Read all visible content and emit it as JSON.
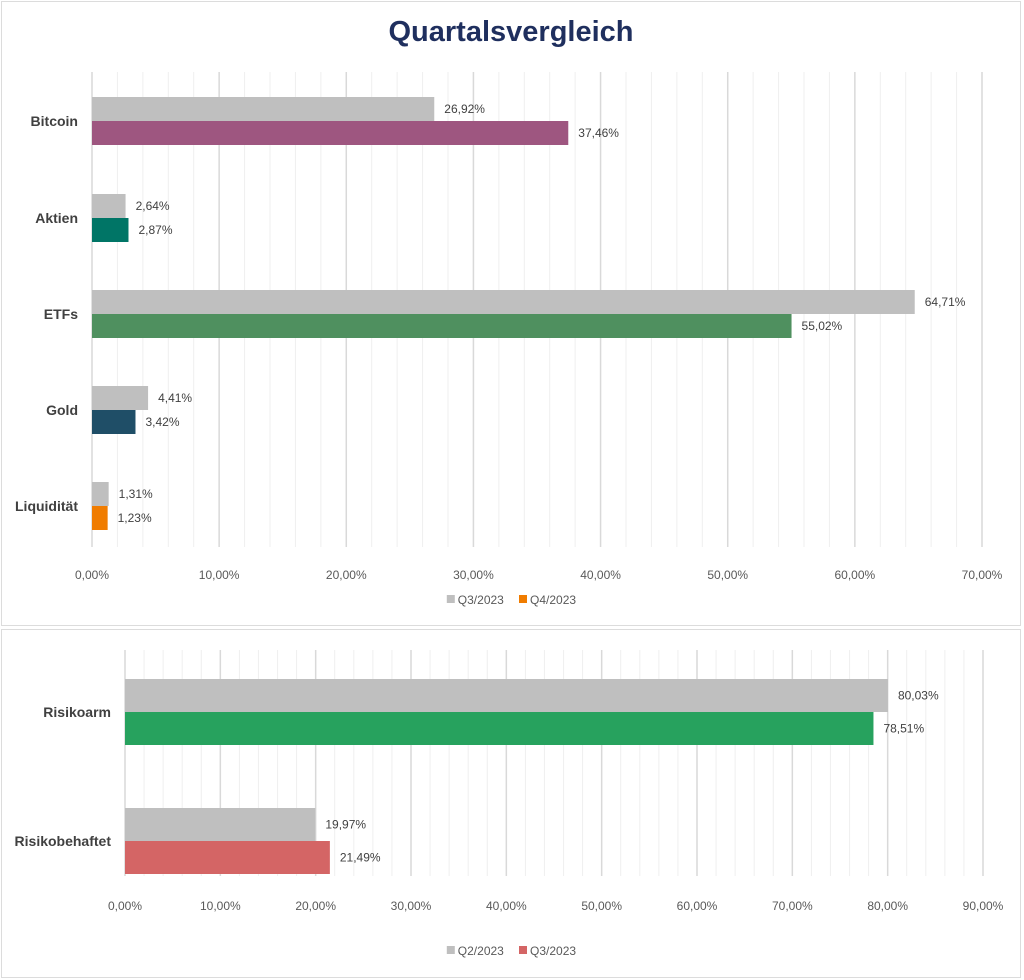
{
  "page_title": "Quartalsvergleich",
  "chart_data": [
    {
      "type": "bar",
      "orientation": "horizontal",
      "title": "Quartalsvergleich",
      "categories": [
        "Bitcoin",
        "Aktien",
        "ETFs",
        "Gold",
        "Liquidität"
      ],
      "series": [
        {
          "name": "Q3/2023",
          "values": [
            26.92,
            2.64,
            64.71,
            4.41,
            1.31
          ],
          "labels": [
            "26,92%",
            "2,64%",
            "64,71%",
            "4,41%",
            "1,31%"
          ],
          "color": "#bfbfbf"
        },
        {
          "name": "Q4/2023",
          "values": [
            37.46,
            2.87,
            55.02,
            3.42,
            1.23
          ],
          "labels": [
            "37,46%",
            "2,87%",
            "55,02%",
            "3,42%",
            "1,23%"
          ],
          "colors": [
            "#9e5680",
            "#007566",
            "#4f905f",
            "#1f4e67",
            "#f07c00"
          ],
          "legend_color": "#f07c00"
        }
      ],
      "xlim": [
        0,
        70
      ],
      "x_ticks": [
        0,
        10,
        20,
        30,
        40,
        50,
        60,
        70
      ],
      "x_tick_labels": [
        "0,00%",
        "10,00%",
        "20,00%",
        "30,00%",
        "40,00%",
        "50,00%",
        "60,00%",
        "70,00%"
      ],
      "xlabel": "",
      "ylabel": "",
      "grid": true,
      "legend": "bottom-center"
    },
    {
      "type": "bar",
      "orientation": "horizontal",
      "title": "",
      "categories": [
        "Risikoarm",
        "Risikobehaftet"
      ],
      "series": [
        {
          "name": "Q2/2023",
          "values": [
            80.03,
            19.97
          ],
          "labels": [
            "80,03%",
            "19,97%"
          ],
          "color": "#bfbfbf"
        },
        {
          "name": "Q3/2023",
          "values": [
            78.51,
            21.49
          ],
          "labels": [
            "78,51%",
            "21,49%"
          ],
          "colors": [
            "#27a25e",
            "#d46565"
          ],
          "legend_color": "#d46565"
        }
      ],
      "xlim": [
        0,
        90
      ],
      "x_ticks": [
        0,
        10,
        20,
        30,
        40,
        50,
        60,
        70,
        80,
        90
      ],
      "x_tick_labels": [
        "0,00%",
        "10,00%",
        "20,00%",
        "30,00%",
        "40,00%",
        "50,00%",
        "60,00%",
        "70,00%",
        "80,00%",
        "90,00%"
      ],
      "xlabel": "",
      "ylabel": "",
      "grid": true,
      "legend": "bottom-center"
    }
  ]
}
